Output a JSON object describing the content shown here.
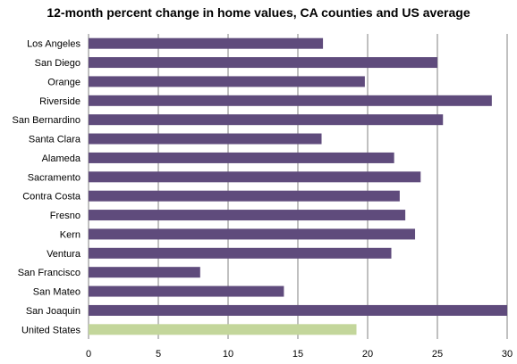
{
  "chart_data": {
    "type": "bar",
    "orientation": "horizontal",
    "title": "12-month percent change in home values, CA counties and US average",
    "categories": [
      "Los Angeles",
      "San Diego",
      "Orange",
      "Riverside",
      "San Bernardino",
      "Santa Clara",
      "Alameda",
      "Sacramento",
      "Contra Costa",
      "Fresno",
      "Kern",
      "Ventura",
      "San Francisco",
      "San Mateo",
      "San Joaquin",
      "United States"
    ],
    "values": [
      16.8,
      25.0,
      19.8,
      28.9,
      25.4,
      16.7,
      21.9,
      23.8,
      22.3,
      22.7,
      23.4,
      21.7,
      8.0,
      14.0,
      30.0,
      19.2
    ],
    "xlim": [
      0,
      30
    ],
    "xticks": [
      0,
      5,
      10,
      15,
      20,
      25,
      30
    ],
    "grid": true,
    "colors": {
      "county": "#5f4b7c",
      "us_average": "#c3d69b",
      "grid": "#808080"
    },
    "highlight_category": "United States"
  }
}
